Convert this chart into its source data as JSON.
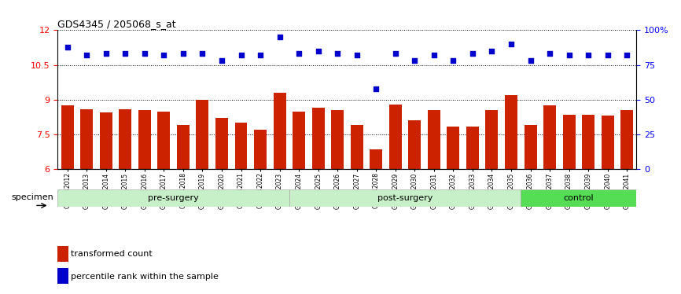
{
  "title": "GDS4345 / 205068_s_at",
  "samples": [
    "GSM842012",
    "GSM842013",
    "GSM842014",
    "GSM842015",
    "GSM842016",
    "GSM842017",
    "GSM842018",
    "GSM842019",
    "GSM842020",
    "GSM842021",
    "GSM842022",
    "GSM842023",
    "GSM842024",
    "GSM842025",
    "GSM842026",
    "GSM842027",
    "GSM842028",
    "GSM842029",
    "GSM842030",
    "GSM842031",
    "GSM842032",
    "GSM842033",
    "GSM842034",
    "GSM842035",
    "GSM842036",
    "GSM842037",
    "GSM842038",
    "GSM842039",
    "GSM842040",
    "GSM842041"
  ],
  "bar_values": [
    8.75,
    8.6,
    8.45,
    8.6,
    8.55,
    8.5,
    7.9,
    9.0,
    8.2,
    8.0,
    7.7,
    9.3,
    8.5,
    8.65,
    8.55,
    7.9,
    6.85,
    8.8,
    8.1,
    8.55,
    7.85,
    7.85,
    8.55,
    9.2,
    7.9,
    8.75,
    8.35,
    8.35,
    8.3,
    8.55
  ],
  "scatter_pct": [
    88,
    82,
    83,
    83,
    83,
    82,
    83,
    83,
    78,
    82,
    82,
    95,
    83,
    85,
    83,
    82,
    58,
    83,
    78,
    82,
    78,
    83,
    85,
    90,
    78,
    83,
    82,
    82,
    82,
    82
  ],
  "ylim_left": [
    6,
    12
  ],
  "ylim_right": [
    0,
    100
  ],
  "yticks_left": [
    6,
    7.5,
    9,
    10.5,
    12
  ],
  "yticks_right": [
    0,
    25,
    50,
    75,
    100
  ],
  "bar_color": "#cc2200",
  "scatter_color": "#0000cc",
  "groups": [
    {
      "label": "pre-surgery",
      "start": 0,
      "end": 12
    },
    {
      "label": "post-surgery",
      "start": 12,
      "end": 24
    },
    {
      "label": "control",
      "start": 24,
      "end": 30
    }
  ],
  "group_colors": [
    "#c8f0c8",
    "#c8f0c8",
    "#55dd55"
  ],
  "specimen_label": "specimen",
  "legend_bar_label": "transformed count",
  "legend_scatter_label": "percentile rank within the sample"
}
